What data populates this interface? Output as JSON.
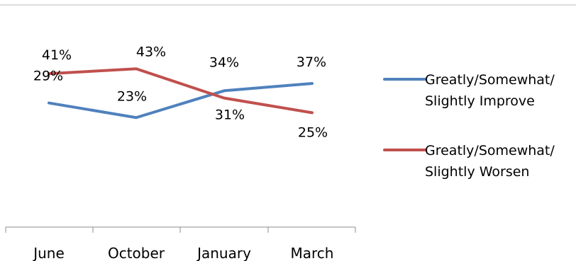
{
  "chart_data": {
    "type": "line",
    "categories": [
      "June",
      "October",
      "January",
      "March"
    ],
    "series": [
      {
        "name": "Greatly/Somewhat/ Slightly Improve",
        "legend_lines": [
          "Greatly/Somewhat/",
          "Slightly Improve"
        ],
        "values": [
          29,
          23,
          34,
          37
        ],
        "labels": [
          "29%",
          "23%",
          "34%",
          "37%"
        ],
        "color": "#4f81bd"
      },
      {
        "name": "Greatly/Somewhat/ Slightly Worsen",
        "legend_lines": [
          "Greatly/Somewhat/",
          "Slightly Worsen"
        ],
        "values": [
          41,
          43,
          31,
          25
        ],
        "labels": [
          "41%",
          "43%",
          "31%",
          "25%"
        ],
        "color": "#c0504d"
      }
    ],
    "ylim": [
      0,
      100
    ],
    "grid": false,
    "legend_position": "right"
  }
}
